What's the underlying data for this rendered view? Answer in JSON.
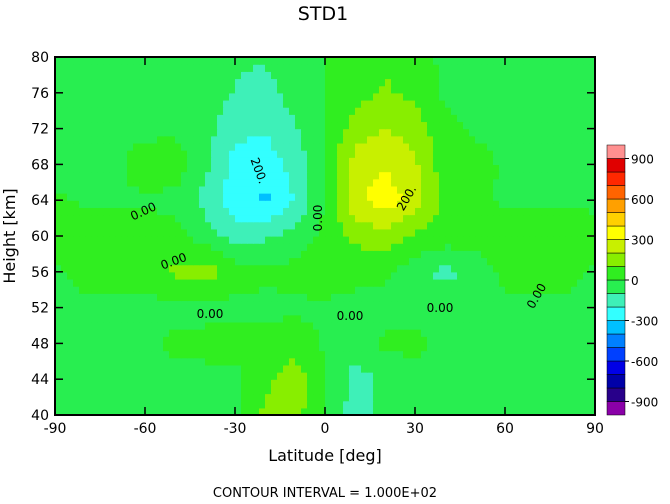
{
  "chart_data": {
    "type": "contour",
    "title": "STD1",
    "x_label": "Latitude [deg]",
    "y_label": "Height [km]",
    "footer": "CONTOUR INTERVAL = 1.000E+02",
    "x": [
      -90,
      -80,
      -70,
      -60,
      -50,
      -40,
      -30,
      -20,
      -10,
      0,
      10,
      20,
      30,
      40,
      50,
      60,
      70,
      80,
      90
    ],
    "y": [
      40,
      44,
      48,
      52,
      56,
      60,
      64,
      68,
      72,
      76,
      80
    ],
    "z": [
      [
        -30,
        -30,
        -30,
        -30,
        -30,
        -30,
        -30,
        120,
        140,
        0,
        -150,
        -70,
        -20,
        -30,
        -30,
        -30,
        -30,
        -30,
        -30
      ],
      [
        -30,
        -30,
        -30,
        -30,
        -30,
        -30,
        -30,
        80,
        150,
        10,
        -140,
        -80,
        -30,
        -30,
        -30,
        -30,
        -30,
        -30,
        -30
      ],
      [
        -30,
        -30,
        -30,
        -30,
        20,
        30,
        30,
        40,
        60,
        -10,
        -60,
        20,
        20,
        -20,
        -30,
        -30,
        -30,
        -30,
        -30
      ],
      [
        -30,
        -30,
        -30,
        -30,
        -30,
        -30,
        -30,
        -30,
        -20,
        -10,
        -30,
        -30,
        -30,
        -40,
        -30,
        -30,
        -30,
        -30,
        -30
      ],
      [
        -20,
        40,
        30,
        30,
        120,
        150,
        60,
        20,
        30,
        40,
        30,
        20,
        -60,
        -130,
        -80,
        30,
        50,
        40,
        -20
      ],
      [
        40,
        60,
        60,
        50,
        40,
        -50,
        -150,
        -120,
        -50,
        30,
        120,
        160,
        80,
        50,
        60,
        60,
        70,
        80,
        40
      ],
      [
        10,
        -10,
        -10,
        -10,
        -30,
        -130,
        -260,
        -320,
        -200,
        0,
        280,
        350,
        260,
        60,
        40,
        -20,
        -20,
        -20,
        -20
      ],
      [
        -20,
        -20,
        -20,
        40,
        60,
        -80,
        -230,
        -260,
        -160,
        0,
        250,
        300,
        220,
        40,
        50,
        -20,
        -20,
        -20,
        -20
      ],
      [
        -20,
        -20,
        -20,
        -20,
        -20,
        -60,
        -180,
        -190,
        -110,
        0,
        150,
        200,
        150,
        30,
        -20,
        -20,
        -20,
        -20,
        -20
      ],
      [
        -20,
        -20,
        -20,
        -20,
        -20,
        -20,
        -110,
        -140,
        -60,
        0,
        60,
        110,
        80,
        -20,
        -20,
        -20,
        -20,
        -20,
        -20
      ],
      [
        -20,
        -20,
        -20,
        -20,
        -20,
        -20,
        -80,
        -90,
        -20,
        0,
        30,
        90,
        40,
        -20,
        -20,
        -20,
        -20,
        -20,
        -20
      ]
    ],
    "xlim": [
      -90,
      90
    ],
    "ylim": [
      40,
      80
    ],
    "xticks": [
      -90,
      -60,
      -30,
      0,
      30,
      60,
      90
    ],
    "yticks": [
      40,
      44,
      48,
      52,
      56,
      60,
      64,
      68,
      72,
      76,
      80
    ],
    "levels": [
      -1000,
      -900,
      -800,
      -700,
      -600,
      -500,
      -400,
      -300,
      -200,
      -100,
      0,
      100,
      200,
      300,
      400,
      500,
      600,
      700,
      800,
      900,
      1000
    ],
    "colors": [
      "#8a00a8",
      "#28008a",
      "#0000a8",
      "#0000e6",
      "#0040ff",
      "#0080ff",
      "#00c0ff",
      "#33ffff",
      "#3ef0b8",
      "#28ee50",
      "#30ee20",
      "#88ee00",
      "#c8f000",
      "#ffff00",
      "#ffd000",
      "#ffa000",
      "#ff6400",
      "#ff2800",
      "#e00000",
      "#ff9090"
    ],
    "colorbar_ticks": [
      -900,
      -600,
      -300,
      0,
      300,
      600,
      900
    ],
    "contour_labels": [
      "0.00",
      "0.00",
      "0.00",
      "0.00",
      "0.00",
      "0.00",
      "0.00",
      "200.",
      "200."
    ]
  }
}
